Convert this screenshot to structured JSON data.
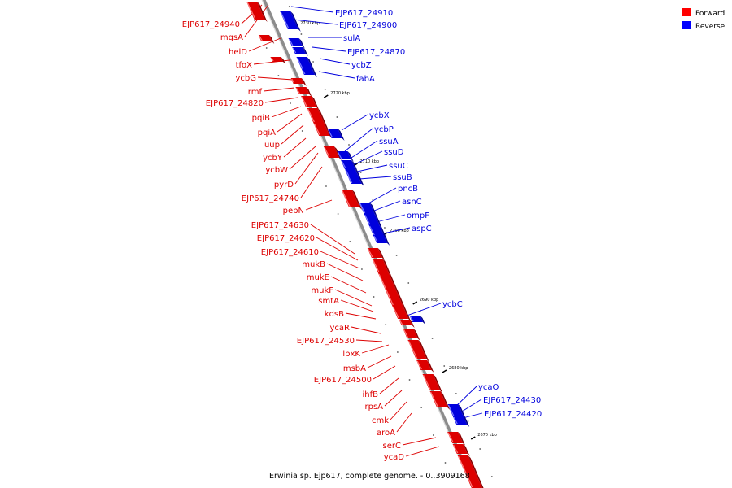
{
  "caption": "Erwinia sp. Ejp617, complete genome. - 0..3909168",
  "legend": [
    {
      "label": "Forward",
      "color": "#ff0000"
    },
    {
      "label": "Reverse",
      "color": "#0000ff"
    }
  ],
  "colors": {
    "forward": "#dd0000",
    "reverse": "#0000dd",
    "backbone": "#999999"
  },
  "ticks": [
    "2730 kbp",
    "2720 kbp",
    "2710 kbp",
    "2700 kbp",
    "2690 kbp",
    "2680 kbp",
    "2670 kbp"
  ],
  "forward_genes": [
    "EJP617_24940",
    "mgsA",
    "helD",
    "tfoX",
    "ycbG",
    "rmf",
    "EJP617_24820",
    "pqiB",
    "pqiA",
    "uup",
    "ycbY",
    "ycbW",
    "pyrD",
    "EJP617_24740",
    "pepN",
    "EJP617_24630",
    "EJP617_24620",
    "EJP617_24610",
    "mukB",
    "mukE",
    "mukF",
    "smtA",
    "kdsB",
    "ycaR",
    "EJP617_24530",
    "lpxK",
    "msbA",
    "EJP617_24500",
    "ihfB",
    "rpsA",
    "cmk",
    "aroA",
    "serC",
    "ycaD"
  ],
  "reverse_genes": [
    "EJP617_24910",
    "EJP617_24900",
    "sulA",
    "EJP617_24870",
    "ycbZ",
    "fabA",
    "ycbX",
    "ycbP",
    "ssuA",
    "ssuD",
    "ssuC",
    "ssuB",
    "pncB",
    "asnC",
    "ompF",
    "aspC",
    "ycbC",
    "ycaO",
    "EJP617_24430",
    "EJP617_24420"
  ]
}
